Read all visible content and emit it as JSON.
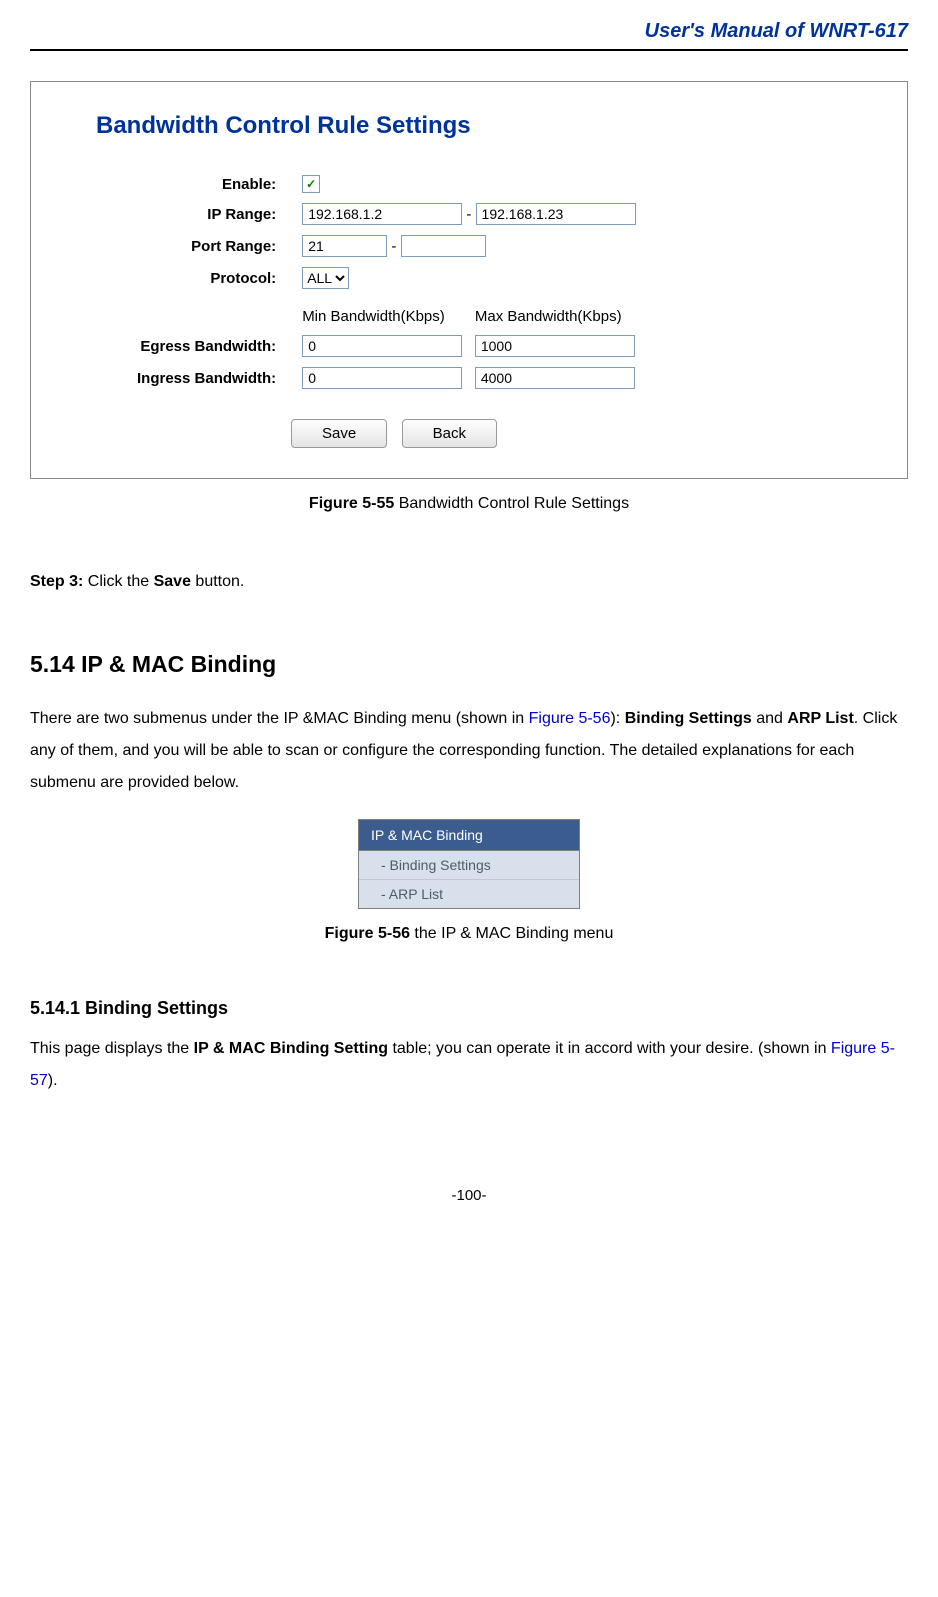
{
  "docHeader": "User's Manual of WNRT-617",
  "figure1": {
    "title": "Bandwidth Control Rule Settings",
    "labels": {
      "enable": "Enable:",
      "ipRange": "IP Range:",
      "portRange": "Port Range:",
      "protocol": "Protocol:",
      "minBw": "Min Bandwidth(Kbps)",
      "maxBw": "Max Bandwidth(Kbps)",
      "egress": "Egress Bandwidth:",
      "ingress": "Ingress Bandwidth:",
      "dash": "-"
    },
    "values": {
      "enableChecked": "✓",
      "ipStart": "192.168.1.2",
      "ipEnd": "192.168.1.23",
      "portStart": "21",
      "portEnd": "",
      "protocol": "ALL",
      "egressMin": "0",
      "egressMax": "1000",
      "ingressMin": "0",
      "ingressMax": "4000"
    },
    "buttons": {
      "save": "Save",
      "back": "Back"
    },
    "captionBold": "Figure 5-55",
    "captionText": " Bandwidth Control Rule Settings"
  },
  "step3": {
    "label": "Step 3:",
    "pre": "  Click the ",
    "bold": "Save",
    "post": " button."
  },
  "section": {
    "heading": "5.14  IP & MAC Binding",
    "para": {
      "t1": "There are two submenus under the IP &MAC Binding menu (shown in ",
      "link1": "Figure 5-56",
      "t2": "): ",
      "b1": "Binding Settings",
      "t3": " and ",
      "b2": "ARP List",
      "t4": ". Click any of them, and you will be able to scan or configure the corresponding function. The detailed explanations for each submenu are provided below."
    }
  },
  "menu": {
    "header": "IP & MAC Binding",
    "item1": "- Binding Settings",
    "item2": "- ARP List",
    "captionBold": "Figure 5-56",
    "captionText": " the IP & MAC Binding menu"
  },
  "subsection": {
    "heading": "5.14.1 Binding Settings",
    "para": {
      "t1": "This page displays the ",
      "b1": "IP & MAC Binding Setting",
      "t2": " table; you can operate it in accord with your desire. (shown in ",
      "link1": "Figure 5-57",
      "t3": ")."
    }
  },
  "pageNumber": "-100-"
}
